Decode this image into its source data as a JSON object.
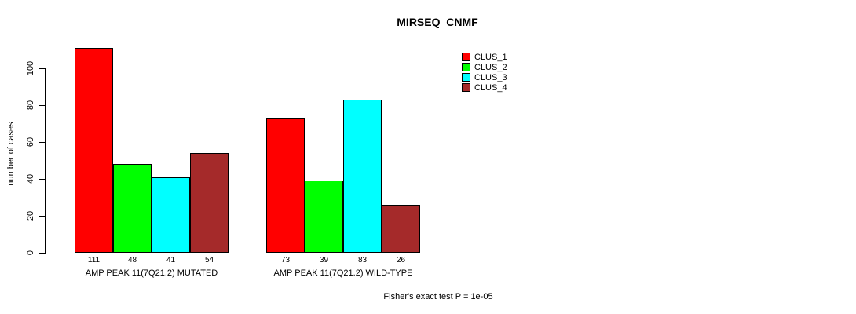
{
  "chart_data": {
    "type": "bar",
    "title": "MIRSEQ_CNMF",
    "ylabel": "number of cases",
    "xlabel": "",
    "ylim": [
      0,
      100
    ],
    "yticks": [
      0,
      20,
      40,
      60,
      80,
      100
    ],
    "grid": false,
    "legend_position": "top-right",
    "series": [
      {
        "name": "CLUS_1",
        "color": "#ff0000"
      },
      {
        "name": "CLUS_2",
        "color": "#00ff00"
      },
      {
        "name": "CLUS_3",
        "color": "#00ffff"
      },
      {
        "name": "CLUS_4",
        "color": "#a52a2a"
      }
    ],
    "groups": [
      {
        "label": "AMP PEAK 11(7Q21.2) MUTATED",
        "values": [
          111,
          48,
          41,
          54
        ]
      },
      {
        "label": "AMP PEAK 11(7Q21.2) WILD-TYPE",
        "values": [
          73,
          39,
          83,
          26
        ]
      }
    ],
    "footnote": "Fisher's exact test P = 1e-05"
  }
}
